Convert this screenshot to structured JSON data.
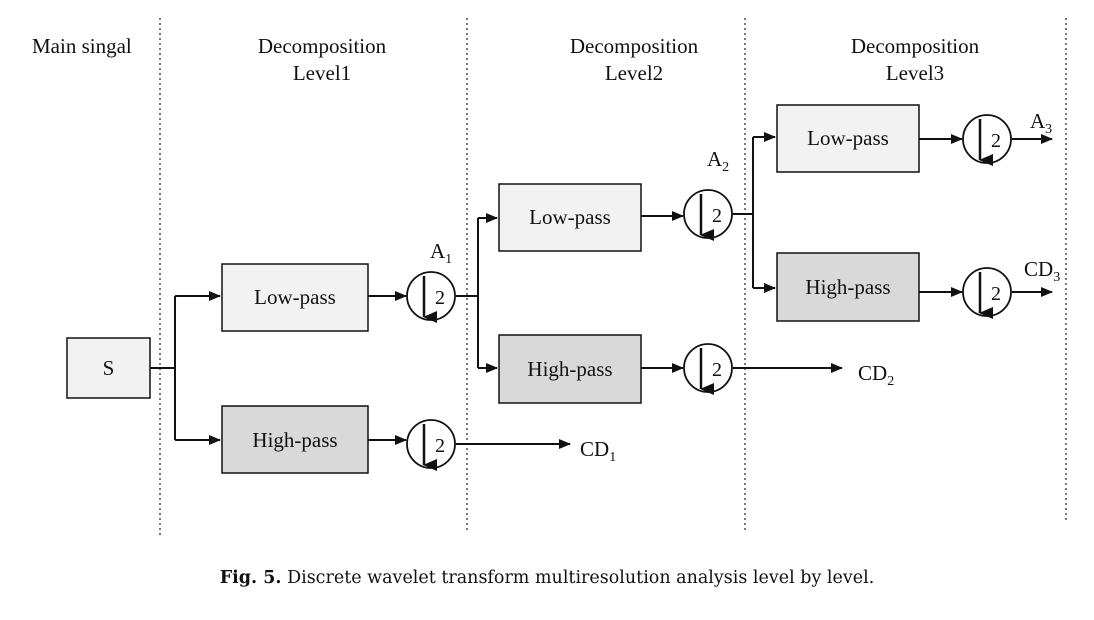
{
  "headers": {
    "main": "Main singal",
    "level1_line1": "Decomposition",
    "level1_line2": "Level1",
    "level2_line1": "Decomposition",
    "level2_line2": "Level2",
    "level3_line1": "Decomposition",
    "level3_line2": "Level3"
  },
  "nodes": {
    "signal": "S",
    "low_pass": "Low-pass",
    "high_pass": "High-pass",
    "downsample_factor": "2"
  },
  "outputs": {
    "a1": {
      "base": "A",
      "sub": "1"
    },
    "a2": {
      "base": "A",
      "sub": "2"
    },
    "a3": {
      "base": "A",
      "sub": "3"
    },
    "cd1": {
      "base": "CD",
      "sub": "1"
    },
    "cd2": {
      "base": "CD",
      "sub": "2"
    },
    "cd3": {
      "base": "CD",
      "sub": "3"
    }
  },
  "colors": {
    "low_pass_fill": "#f2f2f2",
    "high_pass_fill": "#d9d9d9",
    "signal_fill": "#f2f2f2",
    "stroke": "#111111"
  },
  "caption": {
    "label": "Fig. 5.",
    "text": "Discrete wavelet transform multiresolution analysis level by level."
  }
}
